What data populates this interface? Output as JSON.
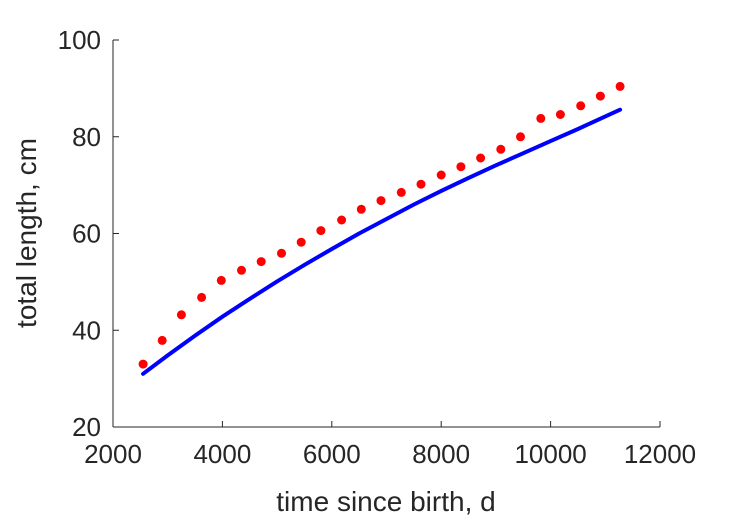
{
  "chart_data": {
    "type": "scatter",
    "xlabel": "time since birth, d",
    "ylabel": "total length, cm",
    "xlim": [
      2000,
      12000
    ],
    "ylim": [
      20,
      100
    ],
    "xticks": [
      2000,
      4000,
      6000,
      8000,
      10000,
      12000
    ],
    "yticks": [
      20,
      40,
      60,
      80,
      100
    ],
    "xtick_labels": [
      "2000",
      "4000",
      "6000",
      "8000",
      "10000",
      "12000"
    ],
    "ytick_labels": [
      "20",
      "40",
      "60",
      "80",
      "100"
    ],
    "grid": false,
    "legend": "none",
    "series": [
      {
        "kind": "points",
        "color": "#ff0000",
        "x": [
          2550,
          2900,
          3250,
          3620,
          3980,
          4350,
          4710,
          5080,
          5440,
          5800,
          6180,
          6540,
          6900,
          7270,
          7630,
          8000,
          8360,
          8720,
          9090,
          9450,
          9820,
          10180,
          10550,
          10910,
          11270
        ],
        "y": [
          33.0,
          37.9,
          43.2,
          46.8,
          50.3,
          52.4,
          54.2,
          55.9,
          58.2,
          60.6,
          62.8,
          65.0,
          66.8,
          68.5,
          70.2,
          72.1,
          73.8,
          75.6,
          77.4,
          80.0,
          83.8,
          84.6,
          86.4,
          88.4,
          90.4
        ]
      },
      {
        "kind": "line",
        "color": "#0000ff",
        "x": [
          2550,
          3000,
          3500,
          4000,
          4500,
          5000,
          5500,
          6000,
          6500,
          7000,
          7500,
          8000,
          8500,
          9000,
          9500,
          10000,
          10500,
          11000,
          11270
        ],
        "y": [
          31.0,
          34.8,
          38.9,
          42.8,
          46.5,
          50.1,
          53.5,
          56.8,
          60.0,
          63.0,
          66.0,
          68.8,
          71.5,
          74.1,
          76.6,
          79.1,
          81.6,
          84.2,
          85.6
        ]
      }
    ]
  }
}
